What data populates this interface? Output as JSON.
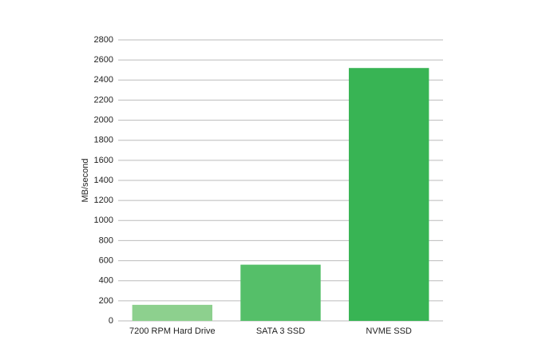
{
  "chart_data": {
    "type": "bar",
    "y_label": "MB/second",
    "categories": [
      "7200 RPM Hard Drive",
      "SATA 3 SSD",
      "NVME SSD"
    ],
    "values": [
      160,
      560,
      2520
    ],
    "colors": [
      "#8dd08e",
      "#55bf69",
      "#38b454"
    ],
    "ylim": [
      0,
      2800
    ],
    "yticks": [
      0,
      200,
      400,
      600,
      800,
      1000,
      1200,
      1400,
      1600,
      1800,
      2000,
      2200,
      2400,
      2600,
      2800
    ],
    "grid": true
  }
}
